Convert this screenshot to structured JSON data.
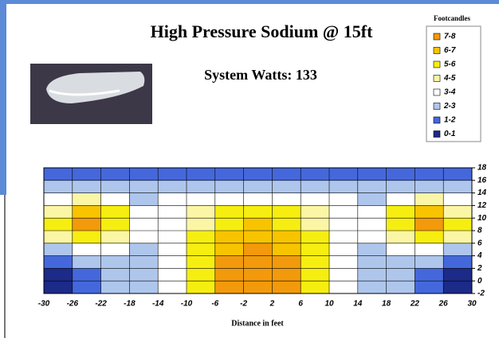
{
  "chart_data": {
    "type": "contour",
    "title": "High Pressure Sodium @ 15ft",
    "subtitle": "System Watts:  133",
    "legend_title": "Footcandles",
    "xlabel": "Distance in feet",
    "xlim": [
      -30,
      30
    ],
    "ylim": [
      -2,
      18
    ],
    "xticks": [
      -30,
      -26,
      -22,
      -18,
      -14,
      -10,
      -6,
      -2,
      2,
      6,
      10,
      14,
      18,
      22,
      26,
      30
    ],
    "yticks": [
      -2,
      0,
      2,
      4,
      6,
      8,
      10,
      12,
      14,
      16,
      18
    ],
    "grid": true,
    "levels": [
      {
        "label": "7-8",
        "min": 7,
        "max": 8,
        "color": "#f29a0c"
      },
      {
        "label": "6-7",
        "min": 6,
        "max": 7,
        "color": "#f8c400"
      },
      {
        "label": "5-6",
        "min": 5,
        "max": 6,
        "color": "#f6ee10"
      },
      {
        "label": "4-5",
        "min": 4,
        "max": 5,
        "color": "#fbf6a6"
      },
      {
        "label": "3-4",
        "min": 3,
        "max": 4,
        "color": "#ffffff"
      },
      {
        "label": "2-3",
        "min": 2,
        "max": 3,
        "color": "#aec6ec"
      },
      {
        "label": "1-2",
        "min": 1,
        "max": 2,
        "color": "#4468dc"
      },
      {
        "label": "0-1",
        "min": 0,
        "max": 1,
        "color": "#1c2a88"
      }
    ],
    "z": [
      [
        1.5,
        1.5,
        1.5,
        1.8,
        1.8,
        1.5,
        1.5,
        1.5,
        1.5,
        1.5,
        1.8,
        1.8,
        1.5,
        1.5,
        1.5
      ],
      [
        2.2,
        2.5,
        2.3,
        2.5,
        2.6,
        2.2,
        2.5,
        2.6,
        2.5,
        2.2,
        2.6,
        2.5,
        2.3,
        2.5,
        2.2
      ],
      [
        3.5,
        4.2,
        3.5,
        2.8,
        3.2,
        3.5,
        3.8,
        3.8,
        3.8,
        3.5,
        3.2,
        2.8,
        3.5,
        4.2,
        3.5
      ],
      [
        4.8,
        6.2,
        5.2,
        3.2,
        3.4,
        4.5,
        5.2,
        5.4,
        5.2,
        4.5,
        3.4,
        3.2,
        5.2,
        6.2,
        4.8
      ],
      [
        5.5,
        7.4,
        5.8,
        3.5,
        3.5,
        4.8,
        5.8,
        6.2,
        5.8,
        4.8,
        3.5,
        3.5,
        5.8,
        7.4,
        5.5
      ],
      [
        4.2,
        5.5,
        4.5,
        3.3,
        3.6,
        5.0,
        6.3,
        6.8,
        6.3,
        5.0,
        3.6,
        3.3,
        4.5,
        5.5,
        4.2
      ],
      [
        2.5,
        3.2,
        3.0,
        2.8,
        3.5,
        5.2,
        6.6,
        7.3,
        6.6,
        5.2,
        3.5,
        2.8,
        3.0,
        3.2,
        2.5
      ],
      [
        1.5,
        2.0,
        2.5,
        2.8,
        3.5,
        5.2,
        7.2,
        7.5,
        7.2,
        5.2,
        3.5,
        2.8,
        2.5,
        2.0,
        1.5
      ],
      [
        0.8,
        1.5,
        2.2,
        2.7,
        3.5,
        5.1,
        7.1,
        7.5,
        7.1,
        5.1,
        3.5,
        2.7,
        2.2,
        1.5,
        0.8
      ],
      [
        0.5,
        1.2,
        2.0,
        2.6,
        3.4,
        5.0,
        7.0,
        7.4,
        7.0,
        5.0,
        3.4,
        2.6,
        2.0,
        1.2,
        0.5
      ]
    ]
  }
}
